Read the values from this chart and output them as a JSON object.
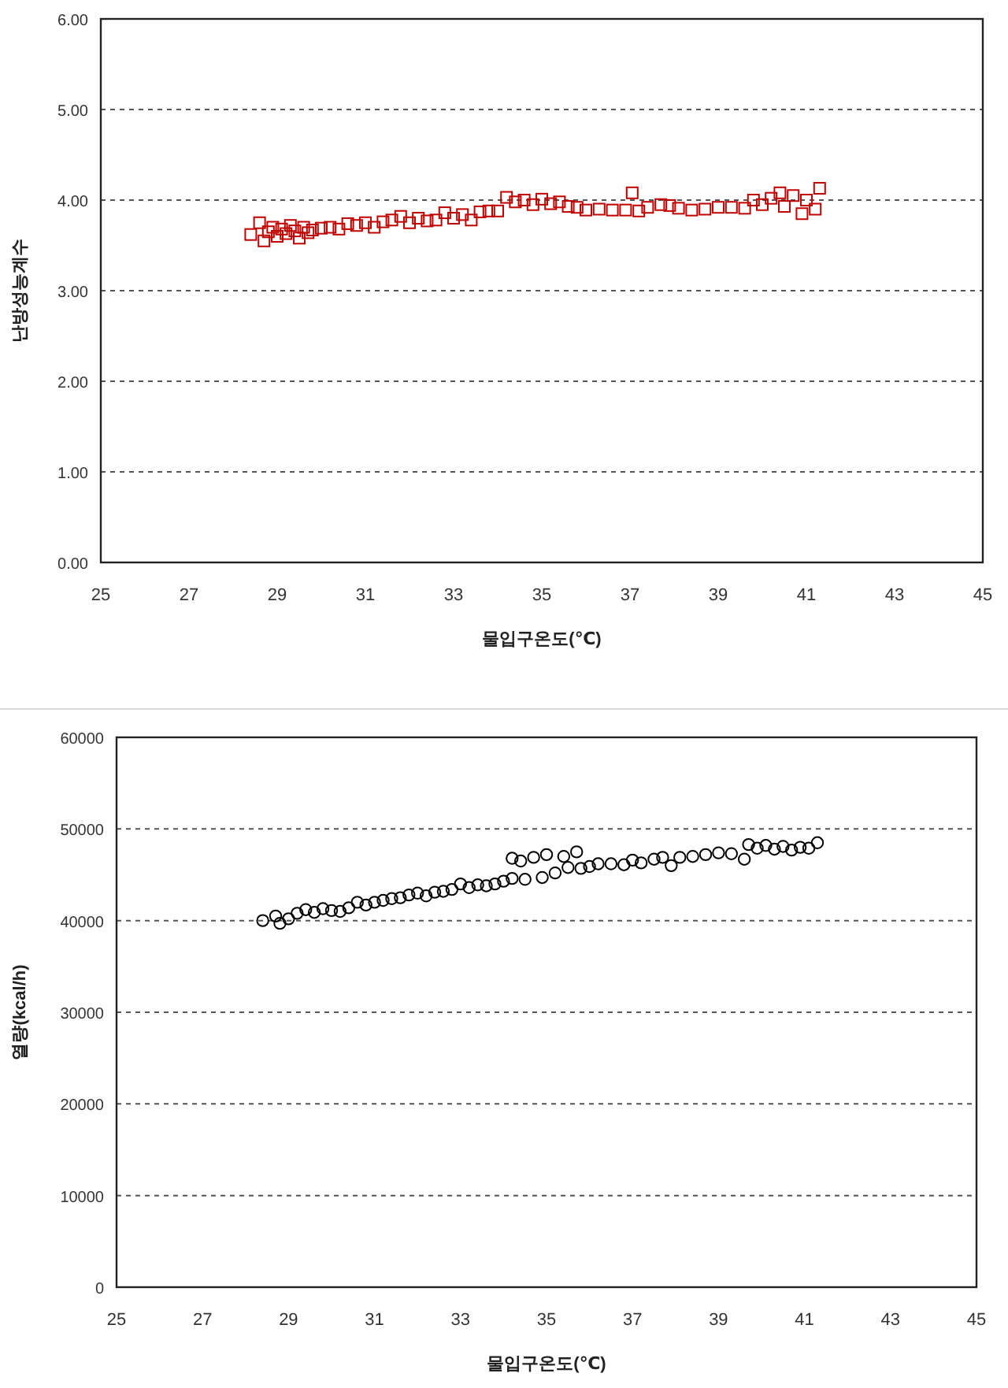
{
  "chart_data": [
    {
      "type": "scatter",
      "xlabel": "물입구온도(℃)",
      "ylabel": "난방성능계수",
      "marker": "square",
      "grid": "y",
      "xlim": [
        25,
        45
      ],
      "ylim": [
        0,
        6
      ],
      "xticks": [
        25,
        27,
        29,
        31,
        33,
        35,
        37,
        39,
        41,
        43,
        45
      ],
      "yticks": [
        {
          "value": 0,
          "label": "0.00"
        },
        {
          "value": 1,
          "label": "1.00"
        },
        {
          "value": 2,
          "label": "2.00"
        },
        {
          "value": 3,
          "label": "3.00"
        },
        {
          "value": 4,
          "label": "4.00"
        },
        {
          "value": 5,
          "label": "5.00"
        },
        {
          "value": 6,
          "label": "6.00"
        }
      ],
      "series": [
        {
          "color": "#c00000",
          "x": [
            28.4,
            28.6,
            28.7,
            28.8,
            28.9,
            29.0,
            29.1,
            29.2,
            29.3,
            29.4,
            29.5,
            29.6,
            29.7,
            29.8,
            30.0,
            30.2,
            30.4,
            30.6,
            30.8,
            31.0,
            31.2,
            31.4,
            31.6,
            31.8,
            32.0,
            32.2,
            32.4,
            32.6,
            32.8,
            33.0,
            33.2,
            33.4,
            33.6,
            33.8,
            34.0,
            34.2,
            34.4,
            34.6,
            34.8,
            35.0,
            35.2,
            35.4,
            35.6,
            35.8,
            36.0,
            36.3,
            36.6,
            36.9,
            37.05,
            37.2,
            37.4,
            37.7,
            37.9,
            38.1,
            38.4,
            38.7,
            39.0,
            39.3,
            39.6,
            39.8,
            40.0,
            40.2,
            40.4,
            40.5,
            40.7,
            40.9,
            41.0,
            41.2,
            41.3
          ],
          "values": [
            3.62,
            3.75,
            3.55,
            3.65,
            3.7,
            3.6,
            3.68,
            3.63,
            3.72,
            3.66,
            3.58,
            3.7,
            3.64,
            3.67,
            3.69,
            3.7,
            3.68,
            3.74,
            3.72,
            3.75,
            3.7,
            3.76,
            3.78,
            3.82,
            3.75,
            3.8,
            3.77,
            3.78,
            3.86,
            3.8,
            3.84,
            3.78,
            3.87,
            3.88,
            3.88,
            4.03,
            3.98,
            4.0,
            3.95,
            4.01,
            3.96,
            3.98,
            3.93,
            3.92,
            3.89,
            3.9,
            3.89,
            3.89,
            4.08,
            3.88,
            3.92,
            3.95,
            3.94,
            3.91,
            3.89,
            3.9,
            3.92,
            3.92,
            3.91,
            4.0,
            3.95,
            4.02,
            4.08,
            3.93,
            4.05,
            3.85,
            4.0,
            3.9,
            4.13
          ]
        }
      ]
    },
    {
      "type": "scatter",
      "xlabel": "물입구온도(℃)",
      "ylabel": "열량(kcal/h)",
      "marker": "circle",
      "grid": "y",
      "xlim": [
        25,
        45
      ],
      "ylim": [
        0,
        60000
      ],
      "xticks": [
        25,
        27,
        29,
        31,
        33,
        35,
        37,
        39,
        41,
        43,
        45
      ],
      "yticks": [
        0,
        10000,
        20000,
        30000,
        40000,
        50000,
        60000
      ],
      "series": [
        {
          "color": "#000000",
          "x": [
            28.4,
            28.7,
            28.8,
            29.0,
            29.2,
            29.4,
            29.6,
            29.8,
            30.0,
            30.2,
            30.4,
            30.6,
            30.8,
            31.0,
            31.2,
            31.4,
            31.6,
            31.8,
            32.0,
            32.2,
            32.4,
            32.6,
            32.8,
            33.0,
            33.2,
            33.4,
            33.6,
            33.8,
            34.0,
            34.2,
            34.2,
            34.4,
            34.5,
            34.7,
            34.9,
            35.0,
            35.2,
            35.4,
            35.5,
            35.7,
            35.8,
            36.0,
            36.2,
            36.5,
            36.8,
            37.0,
            37.2,
            37.5,
            37.7,
            37.9,
            38.1,
            38.4,
            38.7,
            39.0,
            39.3,
            39.6,
            39.7,
            39.9,
            40.1,
            40.3,
            40.5,
            40.7,
            40.9,
            41.1,
            41.3
          ],
          "values": [
            40000,
            40500,
            39700,
            40200,
            40800,
            41200,
            40900,
            41300,
            41100,
            41000,
            41400,
            42000,
            41700,
            42000,
            42200,
            42400,
            42500,
            42800,
            43000,
            42700,
            43100,
            43200,
            43400,
            44000,
            43600,
            43900,
            43800,
            44000,
            44300,
            46800,
            44600,
            46500,
            44500,
            46900,
            44700,
            47200,
            45200,
            47000,
            45800,
            47500,
            45700,
            45900,
            46200,
            46200,
            46100,
            46600,
            46300,
            46700,
            46900,
            46000,
            46900,
            47000,
            47200,
            47400,
            47300,
            46700,
            48300,
            47900,
            48200,
            47800,
            48100,
            47700,
            48000,
            47900,
            48500
          ]
        }
      ]
    }
  ]
}
